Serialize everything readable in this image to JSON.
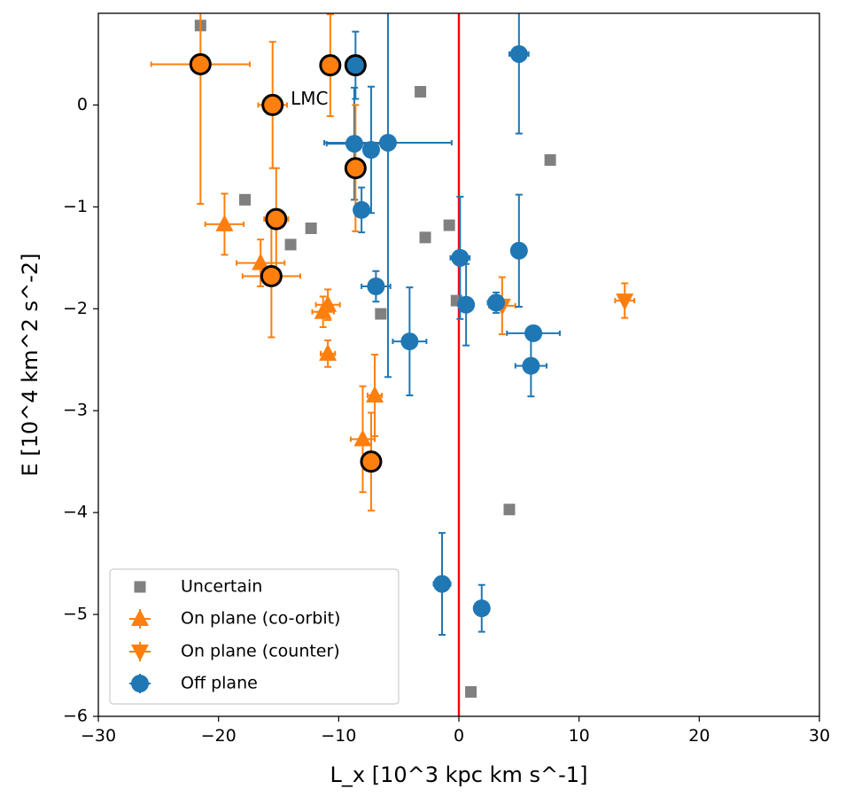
{
  "chart_data": {
    "type": "scatter",
    "xlabel": "L_x [10^3 kpc km s^-1]",
    "ylabel": "E [10^4 km^2 s^-2]",
    "xlim": [
      -30,
      30
    ],
    "ylim": [
      -6,
      0.9
    ],
    "xticks": [
      -30,
      -20,
      -10,
      0,
      10,
      20,
      30
    ],
    "xtick_labels": [
      "−30",
      "−20",
      "−10",
      "0",
      "10",
      "20",
      "30"
    ],
    "yticks": [
      0,
      -1,
      -2,
      -3,
      -4,
      -5,
      -6
    ],
    "ytick_labels": [
      "0",
      "−1",
      "−2",
      "−3",
      "−4",
      "−5",
      "−6"
    ],
    "reference_line": {
      "x": 0,
      "color": "#ff0000"
    },
    "legend_position": "lower-left",
    "series": [
      {
        "name": "Uncertain",
        "marker": "square",
        "color": "#808080",
        "points": [
          {
            "x": -21.5,
            "y": 0.78
          },
          {
            "x": -17.8,
            "y": -0.93
          },
          {
            "x": -14.0,
            "y": -1.37
          },
          {
            "x": -12.3,
            "y": -1.21
          },
          {
            "x": -6.5,
            "y": -2.05
          },
          {
            "x": -3.2,
            "y": 0.13
          },
          {
            "x": -2.8,
            "y": -1.3
          },
          {
            "x": -0.8,
            "y": -1.18
          },
          {
            "x": -0.2,
            "y": -1.92
          },
          {
            "x": 4.2,
            "y": -3.97
          },
          {
            "x": 7.6,
            "y": -0.54
          },
          {
            "x": 1.0,
            "y": -5.76
          }
        ]
      },
      {
        "name": "On plane (co-orbit)",
        "marker": "triangle-up",
        "color": "#ff7f0e",
        "points": [
          {
            "x": -19.5,
            "y": -1.17,
            "xerr": 1.6,
            "yerr": 0.3
          },
          {
            "x": -16.5,
            "y": -1.55,
            "xerr": 2.0,
            "yerr": 0.23
          },
          {
            "x": -11.3,
            "y": -2.03,
            "xerr": 0.9,
            "yerr": 0.15
          },
          {
            "x": -10.9,
            "y": -1.96,
            "xerr": 1.0,
            "yerr": 0.15
          },
          {
            "x": -10.9,
            "y": -2.44,
            "xerr": 0.6,
            "yerr": 0.13
          },
          {
            "x": -8.0,
            "y": -3.28,
            "xerr": 1.0,
            "yerr": 0.52
          },
          {
            "x": -7.0,
            "y": -2.85,
            "xerr": 0.6,
            "yerr": 0.4
          }
        ]
      },
      {
        "name": "On plane (counter)",
        "marker": "triangle-down",
        "color": "#ff7f0e",
        "points": [
          {
            "x": 3.6,
            "y": -1.97,
            "xerr": 1.1,
            "yerr": 0.28
          },
          {
            "x": 13.8,
            "y": -1.92,
            "xerr": 0.8,
            "yerr": 0.17
          }
        ]
      },
      {
        "name": "Off plane",
        "marker": "circle",
        "color": "#1f77b4",
        "points": [
          {
            "x": -8.7,
            "y": -0.38,
            "xerr": 2.3,
            "yerr": 0.55
          },
          {
            "x": -7.3,
            "y": -0.44,
            "xerr": 0.3,
            "yerr": 0.62
          },
          {
            "x": -8.1,
            "y": -1.03,
            "xerr": 0.5,
            "yerr": 0.22
          },
          {
            "x": -5.9,
            "y": -0.37,
            "xerr": 5.3,
            "yerr": 2.3
          },
          {
            "x": -6.9,
            "y": -1.78,
            "xerr": 1.2,
            "yerr": 0.15
          },
          {
            "x": -4.1,
            "y": -2.32,
            "xerr": 1.4,
            "yerr": 0.53
          },
          {
            "x": 0.1,
            "y": -1.5,
            "xerr": 0.8,
            "yerr": 0.6
          },
          {
            "x": 0.6,
            "y": -1.96,
            "xerr": 0.6,
            "yerr": 0.4
          },
          {
            "x": 3.1,
            "y": -1.94,
            "xerr": 0.7,
            "yerr": 0.1
          },
          {
            "x": 5.0,
            "y": 0.5,
            "xerr": 0.8,
            "yerr": 0.78
          },
          {
            "x": 5.0,
            "y": -1.43,
            "xerr": 0.2,
            "yerr": 0.55
          },
          {
            "x": 6.2,
            "y": -2.24,
            "xerr": 2.2,
            "yerr": 0.05
          },
          {
            "x": 6.0,
            "y": -2.56,
            "xerr": 1.3,
            "yerr": 0.3
          },
          {
            "x": -1.4,
            "y": -4.7,
            "xerr": 0.7,
            "yerr": 0.5
          },
          {
            "x": 1.9,
            "y": -4.94,
            "xerr": 0.4,
            "yerr": 0.23
          }
        ]
      }
    ],
    "ringed": [
      {
        "x": -21.5,
        "y": 0.4,
        "fill": "#ff7f0e",
        "marker": "circle",
        "xerr": 4.1,
        "yerr": 1.37
      },
      {
        "x": -15.5,
        "y": 0.0,
        "fill": "#ff7f0e",
        "marker": "circle",
        "xerr": 1.2,
        "yerr": 0.62
      },
      {
        "x": -10.7,
        "y": 0.39,
        "fill": "#ff7f0e",
        "marker": "circle",
        "xerr": 0.8,
        "yerr": 0.5
      },
      {
        "x": -8.6,
        "y": 0.39,
        "fill": "#1f77b4",
        "marker": "circle",
        "xerr": 0.4,
        "yerr": 0.33
      },
      {
        "x": -8.6,
        "y": -0.62,
        "fill": "#ff7f0e",
        "marker": "circle",
        "xerr": 0.3,
        "yerr": 0.62
      },
      {
        "x": -15.2,
        "y": -1.12,
        "fill": "#ff7f0e",
        "marker": "circle",
        "xerr": 1.0,
        "yerr": 0.5
      },
      {
        "x": -15.6,
        "y": -1.68,
        "fill": "#ff7f0e",
        "marker": "circle",
        "xerr": 2.4,
        "yerr": 0.6
      },
      {
        "x": -7.3,
        "y": -3.5,
        "fill": "#ff7f0e",
        "marker": "circle",
        "xerr": 0.4,
        "yerr": 0.48
      }
    ],
    "annotations": [
      {
        "text": "LMC",
        "x": -14.0,
        "y": 0.05
      }
    ]
  }
}
